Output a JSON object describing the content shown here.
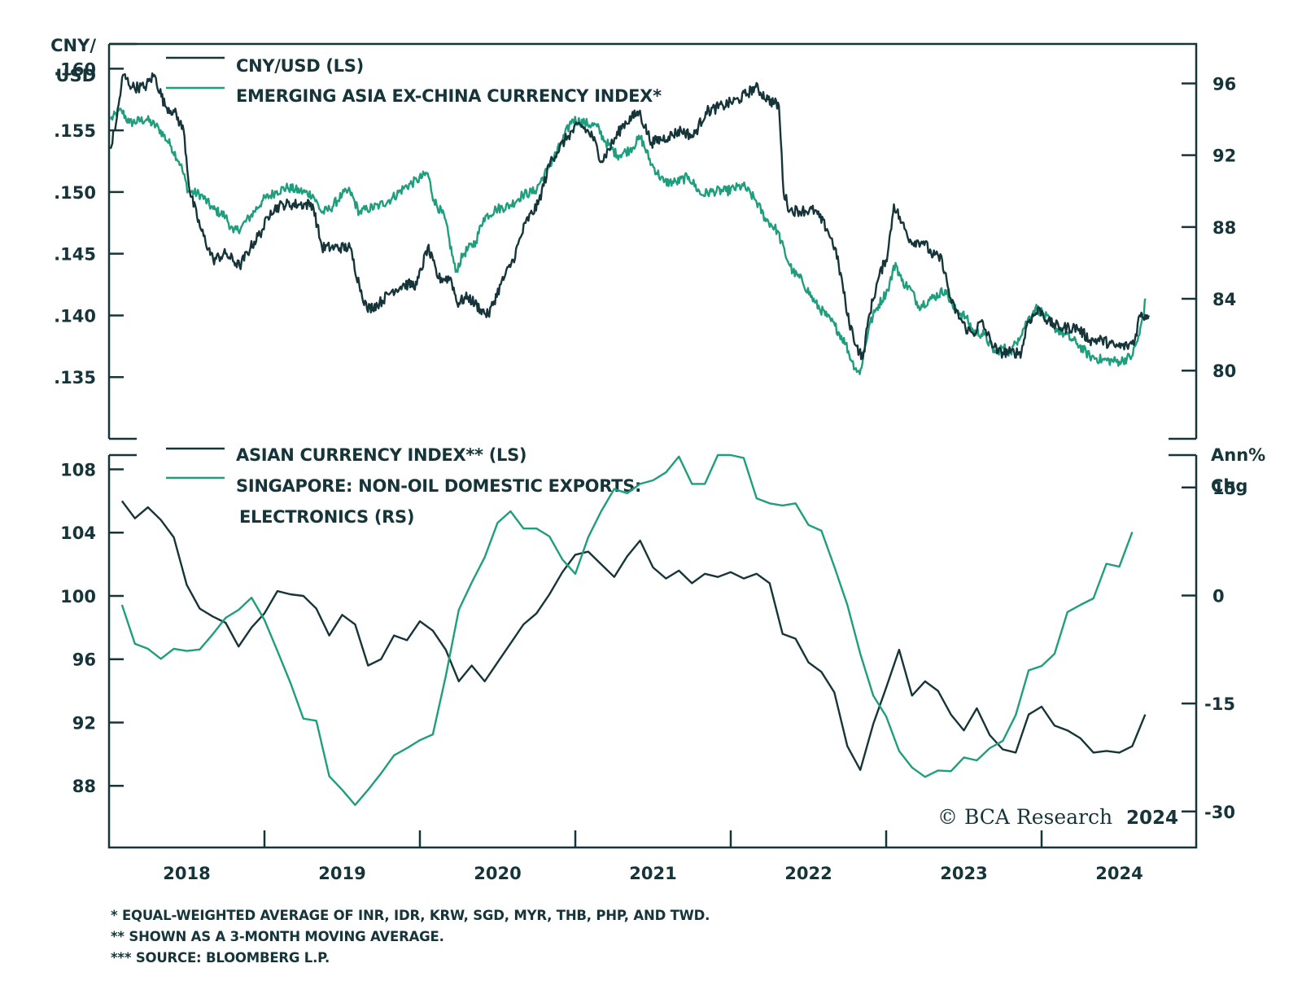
{
  "colors": {
    "dark": "#16353a",
    "green": "#1f9e7d",
    "axis": "#16353a"
  },
  "copyright": {
    "text": "© BCA Research",
    "year": "2024"
  },
  "footnotes": [
    "* EQUAL-WEIGHTED AVERAGE OF INR, IDR, KRW, SGD, MYR, THB, PHP, AND TWD.",
    "** SHOWN AS A 3-MONTH MOVING AVERAGE.",
    "*** SOURCE: BLOOMBERG L.P."
  ],
  "chart_data": [
    {
      "type": "line",
      "panel": "top",
      "x_unit": "years since Jan 2018",
      "xlim": [
        2018,
        2025
      ],
      "x_tick_labels": [
        "2018",
        "2019",
        "2020",
        "2021",
        "2022",
        "2023",
        "2024"
      ],
      "left_axis": {
        "title_line1": "CNY/",
        "title_line2": "USD",
        "ylim": [
          0.13,
          0.162
        ],
        "ticks": [
          0.16,
          0.155,
          0.15,
          0.145,
          0.14,
          0.135
        ],
        "tick_labels": [
          ".160",
          ".155",
          ".150",
          ".145",
          ".140",
          ".135"
        ]
      },
      "right_axis": {
        "ylim": [
          76.2,
          98.2
        ],
        "ticks": [
          96,
          92,
          88,
          84,
          80
        ],
        "tick_labels": [
          "96",
          "92",
          "88",
          "84",
          "80"
        ]
      },
      "legend": [
        "CNY/USD (LS)",
        "EMERGING ASIA EX-CHINA CURRENCY INDEX*"
      ],
      "series": [
        {
          "name": "CNY/USD (LS)",
          "axis": "left",
          "color": "dark",
          "anchors": [
            [
              0.01,
              0.1535
            ],
            [
              0.05,
              0.156
            ],
            [
              0.09,
              0.1595
            ],
            [
              0.15,
              0.1585
            ],
            [
              0.23,
              0.1585
            ],
            [
              0.29,
              0.1595
            ],
            [
              0.36,
              0.157
            ],
            [
              0.42,
              0.1565
            ],
            [
              0.48,
              0.155
            ],
            [
              0.52,
              0.15
            ],
            [
              0.59,
              0.147
            ],
            [
              0.67,
              0.1445
            ],
            [
              0.75,
              0.145
            ],
            [
              0.84,
              0.144
            ],
            [
              0.91,
              0.1455
            ],
            [
              0.99,
              0.147
            ],
            [
              1.04,
              0.1485
            ],
            [
              1.12,
              0.149
            ],
            [
              1.23,
              0.149
            ],
            [
              1.31,
              0.149
            ],
            [
              1.37,
              0.1455
            ],
            [
              1.45,
              0.1455
            ],
            [
              1.55,
              0.1455
            ],
            [
              1.61,
              0.1425
            ],
            [
              1.66,
              0.1405
            ],
            [
              1.74,
              0.141
            ],
            [
              1.82,
              0.142
            ],
            [
              1.9,
              0.1425
            ],
            [
              1.98,
              0.1425
            ],
            [
              2.05,
              0.1455
            ],
            [
              2.12,
              0.143
            ],
            [
              2.2,
              0.143
            ],
            [
              2.24,
              0.141
            ],
            [
              2.31,
              0.1415
            ],
            [
              2.39,
              0.1405
            ],
            [
              2.44,
              0.14
            ],
            [
              2.52,
              0.1425
            ],
            [
              2.6,
              0.1445
            ],
            [
              2.68,
              0.1475
            ],
            [
              2.76,
              0.149
            ],
            [
              2.84,
              0.1525
            ],
            [
              2.95,
              0.1545
            ],
            [
              3.03,
              0.1555
            ],
            [
              3.11,
              0.1545
            ],
            [
              3.17,
              0.1525
            ],
            [
              3.24,
              0.154
            ],
            [
              3.31,
              0.1555
            ],
            [
              3.41,
              0.1565
            ],
            [
              3.49,
              0.154
            ],
            [
              3.6,
              0.1545
            ],
            [
              3.68,
              0.155
            ],
            [
              3.76,
              0.1545
            ],
            [
              3.84,
              0.1565
            ],
            [
              3.95,
              0.157
            ],
            [
              4.05,
              0.1575
            ],
            [
              4.16,
              0.1585
            ],
            [
              4.24,
              0.1575
            ],
            [
              4.31,
              0.157
            ],
            [
              4.34,
              0.15
            ],
            [
              4.38,
              0.1485
            ],
            [
              4.46,
              0.1485
            ],
            [
              4.54,
              0.1485
            ],
            [
              4.62,
              0.147
            ],
            [
              4.67,
              0.1455
            ],
            [
              4.72,
              0.1425
            ],
            [
              4.75,
              0.14
            ],
            [
              4.81,
              0.1375
            ],
            [
              4.85,
              0.1365
            ],
            [
              4.89,
              0.14
            ],
            [
              4.95,
              0.143
            ],
            [
              5.01,
              0.145
            ],
            [
              5.05,
              0.149
            ],
            [
              5.1,
              0.1475
            ],
            [
              5.16,
              0.146
            ],
            [
              5.24,
              0.146
            ],
            [
              5.29,
              0.145
            ],
            [
              5.36,
              0.1445
            ],
            [
              5.42,
              0.141
            ],
            [
              5.51,
              0.139
            ],
            [
              5.56,
              0.1385
            ],
            [
              5.61,
              0.1395
            ],
            [
              5.67,
              0.138
            ],
            [
              5.72,
              0.137
            ],
            [
              5.8,
              0.137
            ],
            [
              5.87,
              0.137
            ],
            [
              5.91,
              0.1395
            ],
            [
              5.99,
              0.1405
            ],
            [
              6.04,
              0.1395
            ],
            [
              6.12,
              0.139
            ],
            [
              6.23,
              0.139
            ],
            [
              6.31,
              0.138
            ],
            [
              6.39,
              0.138
            ],
            [
              6.47,
              0.1375
            ],
            [
              6.55,
              0.1375
            ],
            [
              6.6,
              0.138
            ],
            [
              6.63,
              0.14
            ],
            [
              6.69,
              0.14
            ]
          ]
        },
        {
          "name": "EMERGING ASIA EX-CHINA CURRENCY INDEX*",
          "axis": "right",
          "color": "green",
          "anchors": [
            [
              0.01,
              94.0
            ],
            [
              0.08,
              94.5
            ],
            [
              0.13,
              93.8
            ],
            [
              0.24,
              94.0
            ],
            [
              0.32,
              93.5
            ],
            [
              0.4,
              92.5
            ],
            [
              0.46,
              91.5
            ],
            [
              0.51,
              90.0
            ],
            [
              0.59,
              89.8
            ],
            [
              0.67,
              89.0
            ],
            [
              0.75,
              88.6
            ],
            [
              0.8,
              87.7
            ],
            [
              0.85,
              88.0
            ],
            [
              0.91,
              88.6
            ],
            [
              0.99,
              89.5
            ],
            [
              1.08,
              90.0
            ],
            [
              1.15,
              90.2
            ],
            [
              1.23,
              90.0
            ],
            [
              1.31,
              89.8
            ],
            [
              1.37,
              88.8
            ],
            [
              1.42,
              89.0
            ],
            [
              1.5,
              89.8
            ],
            [
              1.55,
              90.0
            ],
            [
              1.61,
              88.8
            ],
            [
              1.66,
              89.0
            ],
            [
              1.74,
              89.2
            ],
            [
              1.82,
              89.6
            ],
            [
              1.9,
              90.2
            ],
            [
              1.98,
              90.6
            ],
            [
              2.05,
              91.0
            ],
            [
              2.09,
              89.5
            ],
            [
              2.16,
              88.5
            ],
            [
              2.23,
              85.5
            ],
            [
              2.28,
              86.5
            ],
            [
              2.36,
              87.2
            ],
            [
              2.41,
              88.5
            ],
            [
              2.49,
              89.0
            ],
            [
              2.58,
              89.2
            ],
            [
              2.66,
              89.8
            ],
            [
              2.74,
              90.0
            ],
            [
              2.82,
              91.2
            ],
            [
              2.9,
              92.5
            ],
            [
              2.98,
              94.0
            ],
            [
              3.06,
              93.8
            ],
            [
              3.14,
              93.6
            ],
            [
              3.19,
              92.8
            ],
            [
              3.27,
              92.0
            ],
            [
              3.35,
              92.3
            ],
            [
              3.42,
              93.0
            ],
            [
              3.49,
              91.5
            ],
            [
              3.57,
              90.5
            ],
            [
              3.65,
              90.5
            ],
            [
              3.73,
              90.8
            ],
            [
              3.81,
              89.8
            ],
            [
              3.89,
              90.0
            ],
            [
              3.97,
              90.0
            ],
            [
              4.08,
              90.3
            ],
            [
              4.16,
              89.5
            ],
            [
              4.22,
              88.5
            ],
            [
              4.3,
              87.8
            ],
            [
              4.35,
              86.5
            ],
            [
              4.4,
              85.5
            ],
            [
              4.46,
              85.0
            ],
            [
              4.54,
              83.8
            ],
            [
              4.62,
              83.0
            ],
            [
              4.67,
              82.5
            ],
            [
              4.74,
              81.5
            ],
            [
              4.78,
              80.5
            ],
            [
              4.83,
              79.8
            ],
            [
              4.89,
              82.5
            ],
            [
              4.94,
              83.5
            ],
            [
              5.01,
              84.5
            ],
            [
              5.06,
              86.0
            ],
            [
              5.1,
              85.0
            ],
            [
              5.16,
              84.5
            ],
            [
              5.21,
              83.6
            ],
            [
              5.29,
              84.0
            ],
            [
              5.38,
              84.5
            ],
            [
              5.43,
              83.5
            ],
            [
              5.51,
              83.0
            ],
            [
              5.56,
              82.2
            ],
            [
              5.63,
              82.0
            ],
            [
              5.7,
              81.0
            ],
            [
              5.75,
              81.3
            ],
            [
              5.8,
              81.0
            ],
            [
              5.85,
              81.8
            ],
            [
              5.91,
              82.8
            ],
            [
              5.96,
              83.5
            ],
            [
              6.01,
              83.2
            ],
            [
              6.07,
              82.5
            ],
            [
              6.15,
              82.0
            ],
            [
              6.23,
              81.5
            ],
            [
              6.31,
              80.8
            ],
            [
              6.39,
              80.6
            ],
            [
              6.5,
              80.5
            ],
            [
              6.58,
              80.8
            ],
            [
              6.63,
              82.0
            ],
            [
              6.67,
              84.0
            ]
          ]
        }
      ]
    },
    {
      "type": "line",
      "panel": "bottom",
      "x_unit": "years since Jan 2018",
      "xlim": [
        2018,
        2025
      ],
      "x_tick_labels": [
        "2018",
        "2019",
        "2020",
        "2021",
        "2022",
        "2023",
        "2024"
      ],
      "left_axis": {
        "ylim": [
          84.1,
          108.9
        ],
        "ticks": [
          108,
          104,
          100,
          96,
          92,
          88
        ],
        "tick_labels": [
          "108",
          "104",
          "100",
          "96",
          "92",
          "88"
        ]
      },
      "right_axis": {
        "title_line1": "Ann%",
        "title_line2": "Chg",
        "ylim": [
          -35.0,
          19.5
        ],
        "ticks": [
          15,
          0,
          -15,
          -30
        ],
        "tick_labels": [
          "15",
          "0",
          "-15",
          "-30"
        ]
      },
      "legend": [
        "ASIAN CURRENCY INDEX** (LS)",
        "SINGAPORE: NON-OIL DOMESTIC EXPORTS:",
        "ELECTRONICS (RS)"
      ],
      "series": [
        {
          "name": "ASIAN CURRENCY INDEX** (LS)",
          "axis": "left",
          "color": "dark",
          "start_month": 1,
          "values": [
            106.0,
            104.9,
            105.6,
            104.8,
            103.7,
            100.7,
            99.2,
            98.7,
            98.3,
            96.8,
            98.0,
            98.9,
            100.3,
            100.1,
            100.0,
            99.2,
            97.5,
            98.8,
            98.2,
            95.6,
            96.0,
            97.5,
            97.2,
            98.4,
            97.8,
            96.6,
            94.6,
            95.6,
            94.6,
            95.8,
            97.0,
            98.2,
            98.9,
            100.1,
            101.5,
            102.6,
            102.8,
            102.0,
            101.2,
            102.5,
            103.5,
            101.8,
            101.1,
            101.6,
            100.8,
            101.4,
            101.2,
            101.5,
            101.1,
            101.4,
            100.8,
            97.6,
            97.3,
            95.8,
            95.2,
            93.9,
            90.5,
            89.0,
            91.9,
            94.2,
            96.6,
            93.7,
            94.6,
            94.0,
            92.5,
            91.5,
            92.9,
            91.2,
            90.3,
            90.1,
            92.5,
            93.0,
            91.8,
            91.5,
            91.0,
            90.1,
            90.2,
            90.1,
            90.5,
            92.5
          ]
        },
        {
          "name": "SINGAPORE: NON-OIL DOMESTIC EXPORTS: ELECTRONICS (RS)",
          "axis": "right",
          "color": "green",
          "start_month": 1,
          "values": [
            -1.3,
            -6.7,
            -7.4,
            -8.8,
            -7.4,
            -7.7,
            -7.5,
            -5.4,
            -3.1,
            -2.0,
            -0.3,
            -3.4,
            -7.7,
            -12.1,
            -17.1,
            -17.4,
            -25.1,
            -27.0,
            -29.1,
            -27.0,
            -24.7,
            -22.2,
            -21.2,
            -20.1,
            -19.3,
            -11.2,
            -2.0,
            1.8,
            5.3,
            10.1,
            11.7,
            9.3,
            9.3,
            8.2,
            5.0,
            3.0,
            8.1,
            11.7,
            14.8,
            14.2,
            15.5,
            16.0,
            17.1,
            19.3,
            15.5,
            15.5,
            19.5,
            19.5,
            19.1,
            13.5,
            12.8,
            12.5,
            12.8,
            9.8,
            9.0,
            4.0,
            -1.3,
            -8.1,
            -13.9,
            -16.8,
            -21.6,
            -23.9,
            -25.2,
            -24.3,
            -24.4,
            -22.5,
            -22.9,
            -21.2,
            -20.2,
            -16.6,
            -10.4,
            -9.8,
            -8.1,
            -2.3,
            -1.3,
            -0.4,
            4.4,
            4.0,
            8.8
          ]
        }
      ]
    }
  ]
}
